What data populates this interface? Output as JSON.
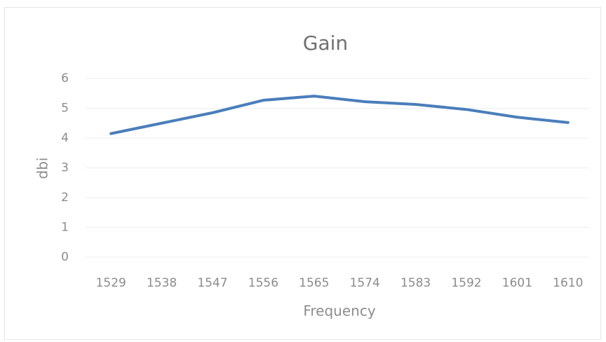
{
  "chart_data": {
    "type": "line",
    "title": "Gain",
    "x_label": "Frequency",
    "y_label": "dbi",
    "categories": [
      1529,
      1538,
      1547,
      1556,
      1565,
      1574,
      1583,
      1592,
      1601,
      1610
    ],
    "series": [
      {
        "name": "dbi",
        "color": "#4a7ebb",
        "values": [
          4.15,
          4.5,
          4.85,
          5.27,
          5.41,
          5.22,
          5.13,
          4.96,
          4.7,
          4.52
        ]
      }
    ],
    "ylim": [
      0,
      6
    ],
    "yticks": [
      0,
      1,
      2,
      3,
      4,
      5,
      6
    ],
    "grid": true
  }
}
